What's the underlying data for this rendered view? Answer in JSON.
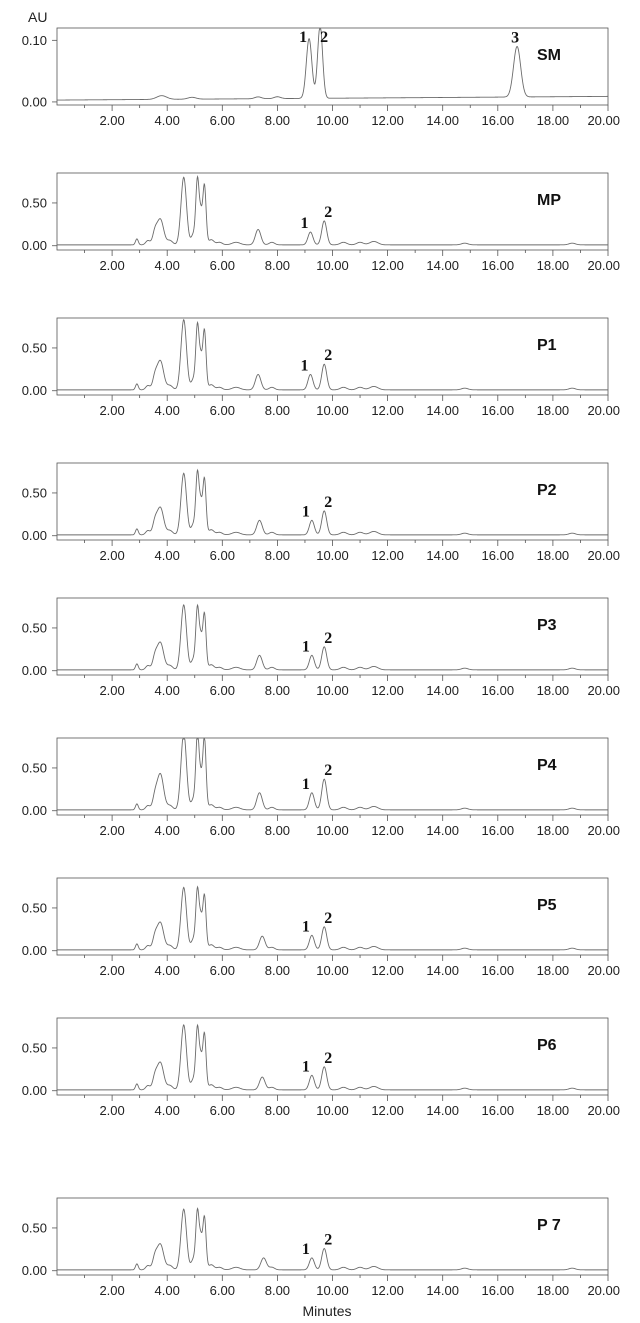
{
  "chart_data": {
    "type": "line",
    "y_unit_label": "AU",
    "x_axis_title": "Minutes",
    "x_range": [
      0,
      20
    ],
    "x_ticks": [
      "2.00",
      "4.00",
      "6.00",
      "8.00",
      "10.00",
      "12.00",
      "14.00",
      "16.00",
      "18.00",
      "20.00"
    ],
    "panels": [
      {
        "label": "SM",
        "ylim": [
          -0.005,
          0.12
        ],
        "y_ticks": [
          "0.00",
          "0.10"
        ],
        "baseline": 0.003,
        "drift": 0.006,
        "peaks": [
          [
            3.8,
            0.006,
            0.18
          ],
          [
            4.9,
            0.003,
            0.15
          ],
          [
            7.3,
            0.003,
            0.12
          ],
          [
            8.0,
            0.003,
            0.12
          ],
          [
            9.15,
            0.097,
            0.1
          ],
          [
            9.55,
            0.118,
            0.09
          ],
          [
            16.7,
            0.082,
            0.13
          ]
        ],
        "peak_labels": [
          {
            "text": "1",
            "x": 9.15
          },
          {
            "text": "2",
            "x": 9.55
          },
          {
            "text": "3",
            "x": 16.7
          }
        ]
      },
      {
        "label": "MP",
        "ylim": [
          -0.05,
          0.85
        ],
        "y_ticks": [
          "0.00",
          "0.50"
        ],
        "baseline": 0.01,
        "drift": 0.0,
        "peaks": [
          [
            2.9,
            0.07,
            0.05
          ],
          [
            3.3,
            0.05,
            0.08
          ],
          [
            3.55,
            0.13,
            0.08
          ],
          [
            3.75,
            0.3,
            0.12
          ],
          [
            4.1,
            0.05,
            0.1
          ],
          [
            4.6,
            0.79,
            0.1
          ],
          [
            4.95,
            0.12,
            0.08
          ],
          [
            5.1,
            0.76,
            0.06
          ],
          [
            5.22,
            0.3,
            0.05
          ],
          [
            5.35,
            0.7,
            0.06
          ],
          [
            5.6,
            0.06,
            0.1
          ],
          [
            5.9,
            0.03,
            0.1
          ],
          [
            6.5,
            0.03,
            0.15
          ],
          [
            7.3,
            0.18,
            0.1
          ],
          [
            7.8,
            0.03,
            0.1
          ],
          [
            9.2,
            0.15,
            0.09
          ],
          [
            9.7,
            0.28,
            0.09
          ],
          [
            10.4,
            0.03,
            0.12
          ],
          [
            11.0,
            0.03,
            0.12
          ],
          [
            11.5,
            0.04,
            0.15
          ],
          [
            14.8,
            0.02,
            0.12
          ],
          [
            18.7,
            0.02,
            0.12
          ]
        ],
        "peak_labels": [
          {
            "text": "1",
            "x": 9.2
          },
          {
            "text": "2",
            "x": 9.7
          }
        ]
      },
      {
        "label": "P1",
        "ylim": [
          -0.05,
          0.85
        ],
        "y_ticks": [
          "0.00",
          "0.50"
        ],
        "baseline": 0.01,
        "drift": 0.0,
        "peaks": [
          [
            2.9,
            0.07,
            0.05
          ],
          [
            3.3,
            0.05,
            0.08
          ],
          [
            3.55,
            0.13,
            0.08
          ],
          [
            3.75,
            0.34,
            0.12
          ],
          [
            4.1,
            0.05,
            0.1
          ],
          [
            4.6,
            0.82,
            0.1
          ],
          [
            4.95,
            0.12,
            0.08
          ],
          [
            5.1,
            0.75,
            0.06
          ],
          [
            5.22,
            0.3,
            0.05
          ],
          [
            5.35,
            0.7,
            0.06
          ],
          [
            5.6,
            0.06,
            0.1
          ],
          [
            5.9,
            0.03,
            0.1
          ],
          [
            6.5,
            0.03,
            0.15
          ],
          [
            7.3,
            0.18,
            0.1
          ],
          [
            7.8,
            0.03,
            0.1
          ],
          [
            9.2,
            0.18,
            0.09
          ],
          [
            9.7,
            0.3,
            0.09
          ],
          [
            10.4,
            0.03,
            0.12
          ],
          [
            11.0,
            0.03,
            0.12
          ],
          [
            11.5,
            0.04,
            0.15
          ],
          [
            14.8,
            0.02,
            0.12
          ],
          [
            18.7,
            0.02,
            0.12
          ]
        ],
        "peak_labels": [
          {
            "text": "1",
            "x": 9.2
          },
          {
            "text": "2",
            "x": 9.7
          }
        ]
      },
      {
        "label": "P2",
        "ylim": [
          -0.05,
          0.85
        ],
        "y_ticks": [
          "0.00",
          "0.50"
        ],
        "baseline": 0.01,
        "drift": 0.0,
        "peaks": [
          [
            2.9,
            0.07,
            0.05
          ],
          [
            3.3,
            0.05,
            0.08
          ],
          [
            3.55,
            0.13,
            0.08
          ],
          [
            3.75,
            0.32,
            0.12
          ],
          [
            4.1,
            0.05,
            0.1
          ],
          [
            4.6,
            0.72,
            0.1
          ],
          [
            4.95,
            0.12,
            0.08
          ],
          [
            5.1,
            0.72,
            0.06
          ],
          [
            5.22,
            0.3,
            0.05
          ],
          [
            5.35,
            0.66,
            0.06
          ],
          [
            5.6,
            0.06,
            0.1
          ],
          [
            5.9,
            0.03,
            0.1
          ],
          [
            6.5,
            0.03,
            0.15
          ],
          [
            7.35,
            0.17,
            0.1
          ],
          [
            7.8,
            0.03,
            0.1
          ],
          [
            9.25,
            0.17,
            0.09
          ],
          [
            9.7,
            0.28,
            0.09
          ],
          [
            10.4,
            0.03,
            0.12
          ],
          [
            11.0,
            0.03,
            0.12
          ],
          [
            11.5,
            0.04,
            0.15
          ],
          [
            14.8,
            0.02,
            0.12
          ],
          [
            18.7,
            0.02,
            0.12
          ]
        ],
        "peak_labels": [
          {
            "text": "1",
            "x": 9.25
          },
          {
            "text": "2",
            "x": 9.7
          }
        ]
      },
      {
        "label": "P3",
        "ylim": [
          -0.05,
          0.85
        ],
        "y_ticks": [
          "0.00",
          "0.50"
        ],
        "baseline": 0.01,
        "drift": 0.0,
        "peaks": [
          [
            2.9,
            0.07,
            0.05
          ],
          [
            3.3,
            0.05,
            0.08
          ],
          [
            3.55,
            0.13,
            0.08
          ],
          [
            3.75,
            0.32,
            0.12
          ],
          [
            4.1,
            0.05,
            0.1
          ],
          [
            4.6,
            0.76,
            0.1
          ],
          [
            4.95,
            0.12,
            0.08
          ],
          [
            5.1,
            0.72,
            0.06
          ],
          [
            5.22,
            0.3,
            0.05
          ],
          [
            5.35,
            0.66,
            0.06
          ],
          [
            5.6,
            0.06,
            0.1
          ],
          [
            5.9,
            0.03,
            0.1
          ],
          [
            6.5,
            0.03,
            0.15
          ],
          [
            7.35,
            0.17,
            0.1
          ],
          [
            7.8,
            0.03,
            0.1
          ],
          [
            9.25,
            0.17,
            0.09
          ],
          [
            9.7,
            0.27,
            0.09
          ],
          [
            10.4,
            0.03,
            0.12
          ],
          [
            11.0,
            0.03,
            0.12
          ],
          [
            11.5,
            0.04,
            0.15
          ],
          [
            14.8,
            0.02,
            0.12
          ],
          [
            18.7,
            0.02,
            0.12
          ]
        ],
        "peak_labels": [
          {
            "text": "1",
            "x": 9.25
          },
          {
            "text": "2",
            "x": 9.7
          }
        ]
      },
      {
        "label": "P4",
        "ylim": [
          -0.05,
          0.85
        ],
        "y_ticks": [
          "0.00",
          "0.50"
        ],
        "baseline": 0.01,
        "drift": 0.0,
        "peaks": [
          [
            2.9,
            0.07,
            0.05
          ],
          [
            3.3,
            0.05,
            0.08
          ],
          [
            3.55,
            0.13,
            0.08
          ],
          [
            3.75,
            0.42,
            0.12
          ],
          [
            4.1,
            0.05,
            0.1
          ],
          [
            4.6,
            0.9,
            0.1
          ],
          [
            4.95,
            0.12,
            0.08
          ],
          [
            5.1,
            0.88,
            0.06
          ],
          [
            5.22,
            0.3,
            0.05
          ],
          [
            5.35,
            0.85,
            0.06
          ],
          [
            5.6,
            0.06,
            0.1
          ],
          [
            5.9,
            0.03,
            0.1
          ],
          [
            6.5,
            0.03,
            0.15
          ],
          [
            7.35,
            0.2,
            0.1
          ],
          [
            7.8,
            0.03,
            0.1
          ],
          [
            9.25,
            0.2,
            0.09
          ],
          [
            9.7,
            0.36,
            0.09
          ],
          [
            10.4,
            0.03,
            0.12
          ],
          [
            11.0,
            0.03,
            0.12
          ],
          [
            11.5,
            0.04,
            0.15
          ],
          [
            14.8,
            0.02,
            0.12
          ],
          [
            18.7,
            0.02,
            0.12
          ]
        ],
        "peak_labels": [
          {
            "text": "1",
            "x": 9.25
          },
          {
            "text": "2",
            "x": 9.7
          }
        ]
      },
      {
        "label": "P5",
        "ylim": [
          -0.05,
          0.85
        ],
        "y_ticks": [
          "0.00",
          "0.50"
        ],
        "baseline": 0.01,
        "drift": 0.0,
        "peaks": [
          [
            2.9,
            0.07,
            0.05
          ],
          [
            3.3,
            0.05,
            0.08
          ],
          [
            3.55,
            0.13,
            0.08
          ],
          [
            3.75,
            0.32,
            0.12
          ],
          [
            4.1,
            0.05,
            0.1
          ],
          [
            4.6,
            0.73,
            0.1
          ],
          [
            4.95,
            0.12,
            0.08
          ],
          [
            5.1,
            0.7,
            0.06
          ],
          [
            5.22,
            0.3,
            0.05
          ],
          [
            5.35,
            0.64,
            0.06
          ],
          [
            5.6,
            0.06,
            0.1
          ],
          [
            5.9,
            0.03,
            0.1
          ],
          [
            6.5,
            0.03,
            0.15
          ],
          [
            7.45,
            0.16,
            0.1
          ],
          [
            7.8,
            0.03,
            0.1
          ],
          [
            9.25,
            0.17,
            0.09
          ],
          [
            9.7,
            0.27,
            0.09
          ],
          [
            10.4,
            0.03,
            0.12
          ],
          [
            11.0,
            0.03,
            0.12
          ],
          [
            11.5,
            0.04,
            0.15
          ],
          [
            14.8,
            0.02,
            0.12
          ],
          [
            18.7,
            0.02,
            0.12
          ]
        ],
        "peak_labels": [
          {
            "text": "1",
            "x": 9.25
          },
          {
            "text": "2",
            "x": 9.7
          }
        ]
      },
      {
        "label": "P6",
        "ylim": [
          -0.05,
          0.85
        ],
        "y_ticks": [
          "0.00",
          "0.50"
        ],
        "baseline": 0.01,
        "drift": 0.0,
        "peaks": [
          [
            2.9,
            0.07,
            0.05
          ],
          [
            3.3,
            0.05,
            0.08
          ],
          [
            3.55,
            0.13,
            0.08
          ],
          [
            3.75,
            0.32,
            0.12
          ],
          [
            4.1,
            0.05,
            0.1
          ],
          [
            4.6,
            0.76,
            0.1
          ],
          [
            4.95,
            0.12,
            0.08
          ],
          [
            5.1,
            0.72,
            0.06
          ],
          [
            5.22,
            0.3,
            0.05
          ],
          [
            5.35,
            0.66,
            0.06
          ],
          [
            5.6,
            0.06,
            0.1
          ],
          [
            5.9,
            0.03,
            0.1
          ],
          [
            6.5,
            0.03,
            0.15
          ],
          [
            7.45,
            0.15,
            0.1
          ],
          [
            7.8,
            0.03,
            0.1
          ],
          [
            9.25,
            0.17,
            0.09
          ],
          [
            9.7,
            0.27,
            0.09
          ],
          [
            10.4,
            0.03,
            0.12
          ],
          [
            11.0,
            0.03,
            0.12
          ],
          [
            11.5,
            0.04,
            0.15
          ],
          [
            14.8,
            0.02,
            0.12
          ],
          [
            18.7,
            0.02,
            0.12
          ]
        ],
        "peak_labels": [
          {
            "text": "1",
            "x": 9.25
          },
          {
            "text": "2",
            "x": 9.7
          }
        ]
      },
      {
        "label": "P 7",
        "ylim": [
          -0.05,
          0.85
        ],
        "y_ticks": [
          "0.00",
          "0.50"
        ],
        "baseline": 0.01,
        "drift": 0.0,
        "peaks": [
          [
            2.9,
            0.07,
            0.05
          ],
          [
            3.3,
            0.05,
            0.08
          ],
          [
            3.55,
            0.13,
            0.08
          ],
          [
            3.75,
            0.3,
            0.12
          ],
          [
            4.1,
            0.05,
            0.1
          ],
          [
            4.6,
            0.71,
            0.1
          ],
          [
            4.95,
            0.12,
            0.08
          ],
          [
            5.1,
            0.68,
            0.06
          ],
          [
            5.22,
            0.3,
            0.05
          ],
          [
            5.35,
            0.62,
            0.06
          ],
          [
            5.6,
            0.06,
            0.1
          ],
          [
            5.9,
            0.03,
            0.1
          ],
          [
            6.5,
            0.03,
            0.15
          ],
          [
            7.5,
            0.14,
            0.1
          ],
          [
            7.8,
            0.03,
            0.1
          ],
          [
            9.25,
            0.14,
            0.09
          ],
          [
            9.7,
            0.25,
            0.09
          ],
          [
            10.4,
            0.03,
            0.12
          ],
          [
            11.0,
            0.03,
            0.12
          ],
          [
            11.5,
            0.04,
            0.15
          ],
          [
            14.8,
            0.02,
            0.12
          ],
          [
            18.7,
            0.02,
            0.12
          ]
        ],
        "peak_labels": [
          {
            "text": "1",
            "x": 9.25
          },
          {
            "text": "2",
            "x": 9.7
          }
        ]
      }
    ]
  },
  "colors": {
    "trace": "#6b6b6b",
    "axis": "#555555",
    "text": "#222222"
  }
}
